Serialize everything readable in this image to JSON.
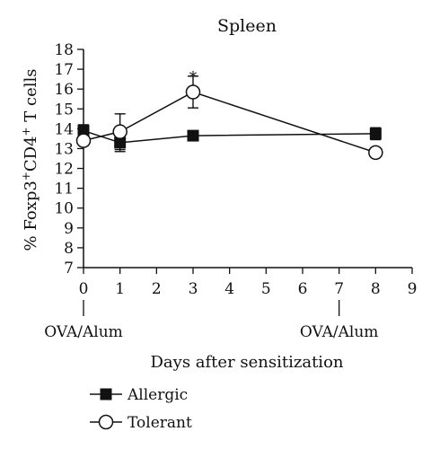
{
  "chart_data": {
    "type": "line",
    "title": "Spleen",
    "xlabel": "Days after sensitization",
    "ylabel": {
      "prefix": "% Foxp3",
      "sup1": "+",
      "mid": "CD4",
      "sup2": "+",
      "suffix": " T cells"
    },
    "xlim": [
      0,
      9
    ],
    "ylim": [
      7,
      18
    ],
    "x_ticks": [
      0,
      1,
      2,
      3,
      4,
      5,
      6,
      7,
      8,
      9
    ],
    "y_ticks": [
      7,
      8,
      9,
      10,
      11,
      12,
      13,
      14,
      15,
      16,
      17,
      18
    ],
    "series": [
      {
        "name": "Allergic",
        "marker": "filled-square",
        "color": "#111111",
        "x": [
          0,
          1,
          3,
          8
        ],
        "y": [
          13.9,
          13.3,
          13.65,
          13.75
        ],
        "error": [
          0.3,
          0.45,
          0.15,
          0.3
        ]
      },
      {
        "name": "Tolerant",
        "marker": "open-circle",
        "color": "#111111",
        "x": [
          0,
          1,
          3,
          8
        ],
        "y": [
          13.4,
          13.85,
          15.85,
          12.8
        ],
        "error": [
          0.2,
          0.9,
          0.8,
          0.15
        ]
      }
    ],
    "annotations": [
      {
        "text": "*",
        "x": 3,
        "y": 16.9
      },
      {
        "text": "OVA/Alum",
        "x": 0
      },
      {
        "text": "OVA/Alum",
        "x": 7
      }
    ],
    "legend_position": "bottom-left",
    "grid": false
  }
}
